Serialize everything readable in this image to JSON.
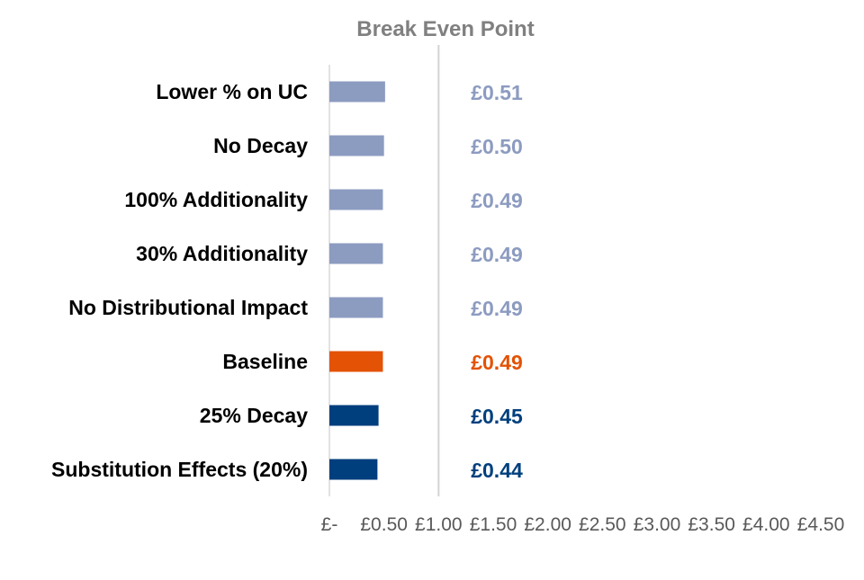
{
  "chart_data": {
    "type": "bar",
    "orientation": "horizontal",
    "title": "",
    "xlabel": "",
    "ylabel": "",
    "categories": [
      "Lower % on UC",
      "No Decay",
      "100% Additionality",
      "30% Additionality",
      "No Distributional Impact",
      "Baseline",
      "25% Decay",
      "Substitution Effects (20%)"
    ],
    "values": [
      0.51,
      0.5,
      0.49,
      0.49,
      0.49,
      0.49,
      0.45,
      0.44
    ],
    "value_labels": [
      "£0.51",
      "£0.50",
      "£0.49",
      "£0.49",
      "£0.49",
      "£0.49",
      "£0.45",
      "£0.44"
    ],
    "bar_colors": [
      "#8c9bc0",
      "#8c9bc0",
      "#8c9bc0",
      "#8c9bc0",
      "#8c9bc0",
      "#e35205",
      "#003f7d",
      "#003f7d"
    ],
    "xlim": [
      0,
      4.5
    ],
    "x_ticks": [
      0,
      0.5,
      1.0,
      1.5,
      2.0,
      2.5,
      3.0,
      3.5,
      4.0,
      4.5
    ],
    "x_tick_labels": [
      "£-",
      "£0.50",
      "£1.00",
      "£1.50",
      "£2.00",
      "£2.50",
      "£3.00",
      "£3.50",
      "£4.00",
      "£4.50"
    ],
    "reference_line": {
      "label": "Break Even Point",
      "x": 1.0,
      "color": "#d4d4d4"
    },
    "label_color_title": "#808080",
    "grid": false,
    "legend": "none"
  }
}
